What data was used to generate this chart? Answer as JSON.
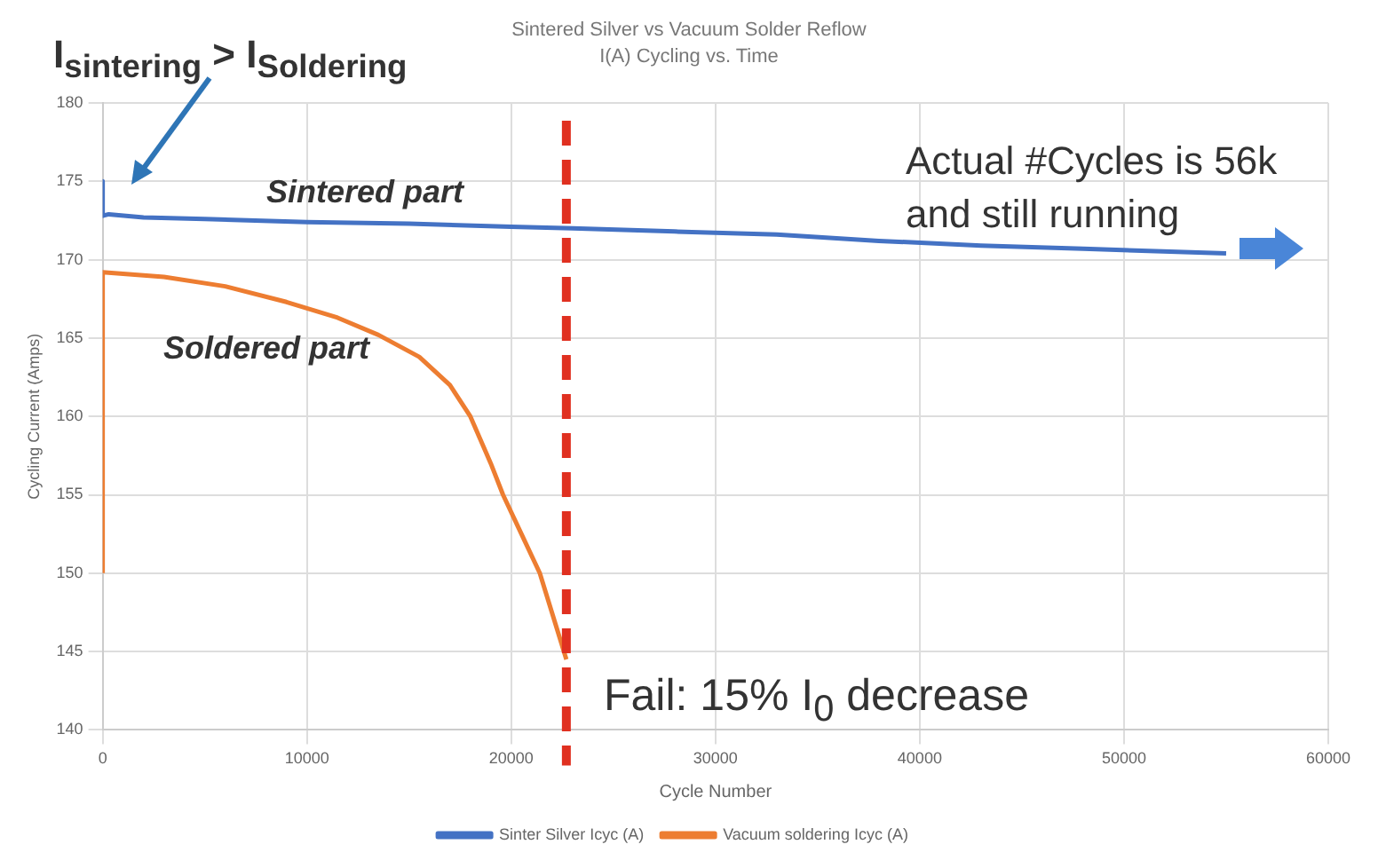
{
  "chart_data": {
    "type": "line",
    "title": "Sintered Silver vs Vacuum Solder Reflow",
    "subtitle": "I(A) Cycling vs. Time",
    "xlabel": "Cycle Number",
    "ylabel": "Cycling Current (Amps)",
    "xlim": [
      0,
      60000
    ],
    "xticks": [
      0,
      10000,
      20000,
      30000,
      40000,
      50000,
      60000
    ],
    "ylim": [
      140,
      180
    ],
    "yticks": [
      140,
      145,
      150,
      155,
      160,
      165,
      170,
      175,
      180
    ],
    "grid": true,
    "legend": "bottom",
    "marker": "none",
    "line_style": "solid",
    "series": [
      {
        "name": "Sinter Silver Icyc (A)",
        "color": "#4472c4",
        "x": [
          0,
          0,
          300,
          2000,
          5000,
          10000,
          15000,
          20000,
          23000,
          28000,
          33000,
          38000,
          43000,
          48000,
          55000
        ],
        "values": [
          175,
          172.8,
          172.9,
          172.7,
          172.6,
          172.4,
          172.3,
          172.1,
          172.0,
          171.8,
          171.6,
          171.2,
          170.9,
          170.7,
          170.4
        ]
      },
      {
        "name": "Vacuum soldering Icyc (A)",
        "color": "#ed7d31",
        "x": [
          0,
          0,
          3000,
          6000,
          9000,
          11500,
          13500,
          15500,
          17000,
          18000,
          19000,
          19600,
          20500,
          21400,
          22700
        ],
        "values": [
          150,
          169.2,
          168.9,
          168.3,
          167.3,
          166.3,
          165.2,
          163.8,
          162,
          160,
          157,
          155,
          152.5,
          150,
          144.5
        ]
      }
    ],
    "ref_lines": [
      {
        "axis": "x",
        "value": 22700,
        "color": "#e03020",
        "line_style": "dashed"
      }
    ],
    "annotations": [
      "I$_{sintering}$ > I$_{Soldering}$",
      "Sintered part",
      "Soldered part",
      "Actual #Cycles is 56k and still running",
      "Fail: 15% I$_{0}$ decrease"
    ]
  }
}
